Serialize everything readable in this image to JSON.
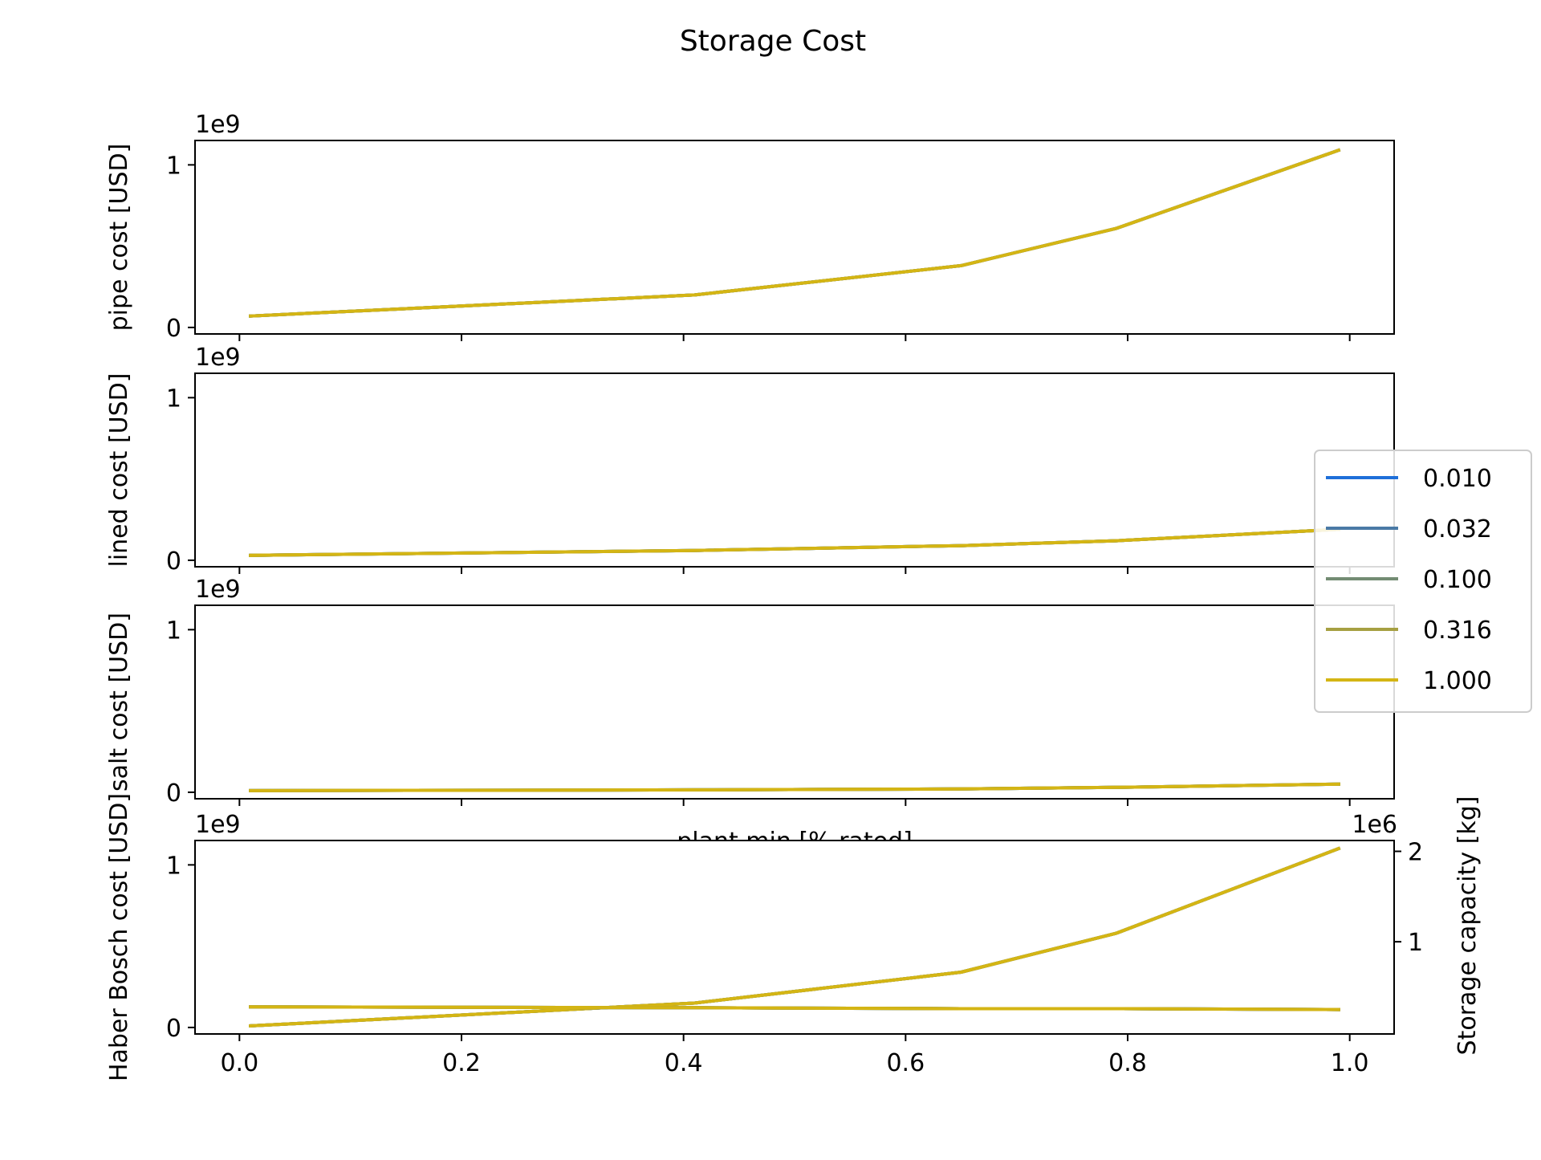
{
  "figure": {
    "title": "Storage Cost"
  },
  "legend": {
    "entries": [
      {
        "label": "0.010",
        "color": "#1f6fd9"
      },
      {
        "label": "0.032",
        "color": "#4a7aa6"
      },
      {
        "label": "0.100",
        "color": "#738c73"
      },
      {
        "label": "0.316",
        "color": "#a6a042"
      },
      {
        "label": "1.000",
        "color": "#d4b514"
      }
    ]
  },
  "chart_data": [
    {
      "type": "line",
      "ylabel": "pipe cost [USD]",
      "offset_label": "1e9",
      "xlim": [
        -0.04,
        1.04
      ],
      "ylim": [
        -0.04,
        1.15
      ],
      "yticks": [
        {
          "value": 0,
          "label": "0"
        },
        {
          "value": 1,
          "label": "1"
        }
      ],
      "x": [
        0.01,
        0.41,
        0.65,
        0.79,
        0.99
      ],
      "series": [
        {
          "values": [
            0.07,
            0.2,
            0.38,
            0.61,
            1.09
          ]
        }
      ]
    },
    {
      "type": "line",
      "ylabel": "lined cost [USD]",
      "offset_label": "1e9",
      "xlim": [
        -0.04,
        1.04
      ],
      "ylim": [
        -0.04,
        1.15
      ],
      "yticks": [
        {
          "value": 0,
          "label": "0"
        },
        {
          "value": 1,
          "label": "1"
        }
      ],
      "x": [
        0.01,
        0.41,
        0.65,
        0.79,
        0.99
      ],
      "series": [
        {
          "values": [
            0.03,
            0.06,
            0.09,
            0.12,
            0.19
          ]
        }
      ]
    },
    {
      "type": "line",
      "ylabel": "salt cost [USD]",
      "offset_label": "1e9",
      "xlabel": "plant min [% rated]",
      "xlim": [
        -0.04,
        1.04
      ],
      "ylim": [
        -0.04,
        1.15
      ],
      "yticks": [
        {
          "value": 0,
          "label": "0"
        },
        {
          "value": 1,
          "label": "1"
        }
      ],
      "x": [
        0.01,
        0.41,
        0.65,
        0.79,
        0.99
      ],
      "series": [
        {
          "values": [
            0.01,
            0.015,
            0.02,
            0.03,
            0.05
          ]
        }
      ]
    },
    {
      "type": "line",
      "ylabel": "Haber Bosch cost [USD]",
      "offset_label": "1e9",
      "xlim": [
        -0.04,
        1.04
      ],
      "ylim": [
        -0.04,
        1.15
      ],
      "yticks": [
        {
          "value": 0,
          "label": "0"
        },
        {
          "value": 1,
          "label": "1"
        }
      ],
      "xticks": [
        {
          "value": 0.0,
          "label": "0.0"
        },
        {
          "value": 0.2,
          "label": "0.2"
        },
        {
          "value": 0.4,
          "label": "0.4"
        },
        {
          "value": 0.6,
          "label": "0.6"
        },
        {
          "value": 0.8,
          "label": "0.8"
        },
        {
          "value": 1.0,
          "label": "1.0"
        }
      ],
      "x": [
        0.01,
        0.41,
        0.65,
        0.79,
        0.99
      ],
      "series": [
        {
          "values": [
            0.01,
            0.15,
            0.34,
            0.58,
            1.1
          ]
        }
      ],
      "secondary_y": {
        "ylabel": "Storage capacity [kg]",
        "offset_label": "1e6",
        "ylim": [
          -0.02,
          2.12
        ],
        "yticks": [
          {
            "value": 1,
            "label": "1"
          },
          {
            "value": 2,
            "label": "2"
          }
        ],
        "series": [
          {
            "values": [
              0.28,
              0.27,
              0.26,
              0.26,
              0.25
            ]
          }
        ]
      }
    }
  ]
}
